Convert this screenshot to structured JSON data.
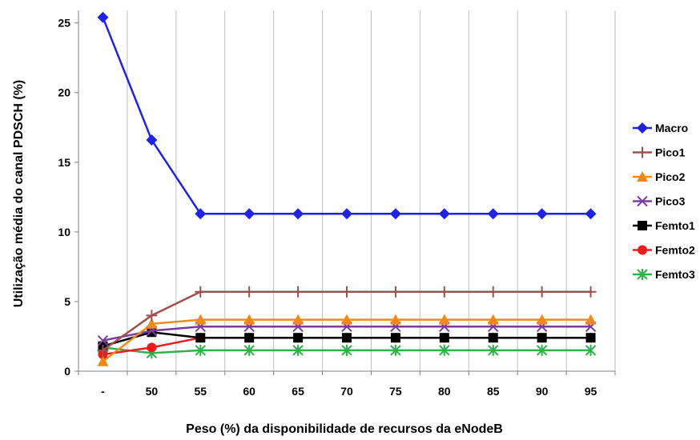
{
  "chart_data": {
    "type": "line",
    "title": "",
    "xlabel": "Peso (%) da disponibilidade de recursos da eNodeB",
    "ylabel": "Utilização média do canal PDSCH (%)",
    "categories": [
      "-",
      "50",
      "55",
      "60",
      "65",
      "70",
      "75",
      "80",
      "85",
      "90",
      "95"
    ],
    "ylim": [
      0,
      25
    ],
    "yticks": [
      0,
      5,
      10,
      15,
      20,
      25
    ],
    "grid": "vertical",
    "legend_position": "right",
    "series": [
      {
        "name": "Macro",
        "color": "#1f23e6",
        "marker": "diamond",
        "values": [
          25.4,
          16.6,
          11.3,
          11.3,
          11.3,
          11.3,
          11.3,
          11.3,
          11.3,
          11.3,
          11.3
        ]
      },
      {
        "name": "Pico1",
        "color": "#a0504c",
        "marker": "plus",
        "values": [
          1.5,
          4.0,
          5.7,
          5.7,
          5.7,
          5.7,
          5.7,
          5.7,
          5.7,
          5.7,
          5.7
        ]
      },
      {
        "name": "Pico2",
        "color": "#f08a17",
        "marker": "triangle",
        "values": [
          0.7,
          3.4,
          3.7,
          3.7,
          3.7,
          3.7,
          3.7,
          3.7,
          3.7,
          3.7,
          3.7
        ]
      },
      {
        "name": "Pico3",
        "color": "#7a3ba0",
        "marker": "x",
        "values": [
          2.2,
          2.9,
          3.2,
          3.2,
          3.2,
          3.2,
          3.2,
          3.2,
          3.2,
          3.2,
          3.2
        ]
      },
      {
        "name": "Femto1",
        "color": "#000000",
        "marker": "square",
        "values": [
          1.8,
          2.8,
          2.4,
          2.4,
          2.4,
          2.4,
          2.4,
          2.4,
          2.4,
          2.4,
          2.4
        ]
      },
      {
        "name": "Femto2",
        "color": "#ee1c1c",
        "marker": "circle",
        "values": [
          1.2,
          1.7,
          2.4,
          2.4,
          2.4,
          2.4,
          2.4,
          2.4,
          2.4,
          2.4,
          2.4
        ]
      },
      {
        "name": "Femto3",
        "color": "#2fb24a",
        "marker": "star",
        "values": [
          1.7,
          1.3,
          1.5,
          1.5,
          1.5,
          1.5,
          1.5,
          1.5,
          1.5,
          1.5,
          1.5
        ]
      }
    ]
  }
}
